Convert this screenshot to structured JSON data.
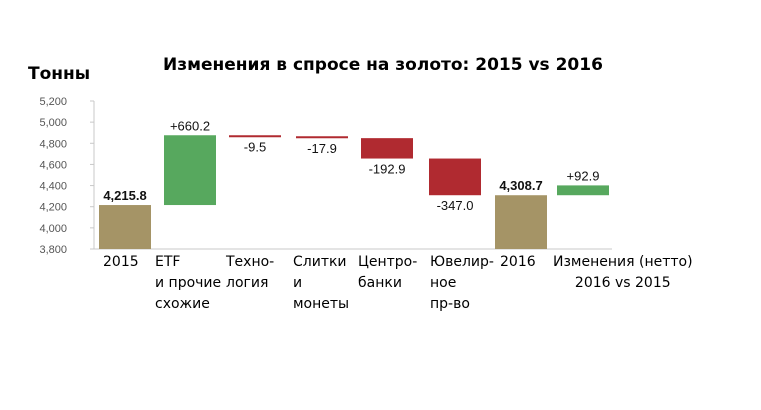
{
  "chart_data": {
    "type": "bar",
    "title": "Изменения в спросе на золото: 2015 vs 2016",
    "ylabel": "Тонны",
    "ylim": [
      3800,
      5200
    ],
    "yticks": [
      "3,800",
      "4,000",
      "4,200",
      "4,400",
      "4,600",
      "4,800",
      "5,000",
      "5,200"
    ],
    "grid": false,
    "bars": [
      {
        "category": "2015",
        "label": "4,215.8",
        "start": 3800,
        "end": 4215.8,
        "kind": "total"
      },
      {
        "category": "ETF\nи прочие\nсхожие",
        "label": "+660.2",
        "start": 4215.8,
        "end": 4876.0,
        "kind": "increase"
      },
      {
        "category": "Техно-\nлогия",
        "label": "-9.5",
        "start": 4876.0,
        "end": 4866.5,
        "kind": "decrease"
      },
      {
        "category": "Слитки\nи\nмонеты",
        "label": "-17.9",
        "start": 4866.5,
        "end": 4848.6,
        "kind": "decrease"
      },
      {
        "category": "Центро-\nбанки",
        "label": "-192.9",
        "start": 4848.6,
        "end": 4655.7,
        "kind": "decrease"
      },
      {
        "category": "Ювелир-\nное\nпр-во",
        "label": "-347.0",
        "start": 4655.7,
        "end": 4308.7,
        "kind": "decrease"
      },
      {
        "category": "2016",
        "label": "4,308.7",
        "start": 3800,
        "end": 4308.7,
        "kind": "total"
      },
      {
        "category": "Изменения (нетто)\n2016 vs 2015",
        "label": "+92.9",
        "start": 4308.7,
        "end": 4401.6,
        "kind": "increase"
      }
    ]
  },
  "colors": {
    "total": "#a59466",
    "increase": "#57a85e",
    "decrease": "#b02a30",
    "axis": "#c8c8c8"
  }
}
